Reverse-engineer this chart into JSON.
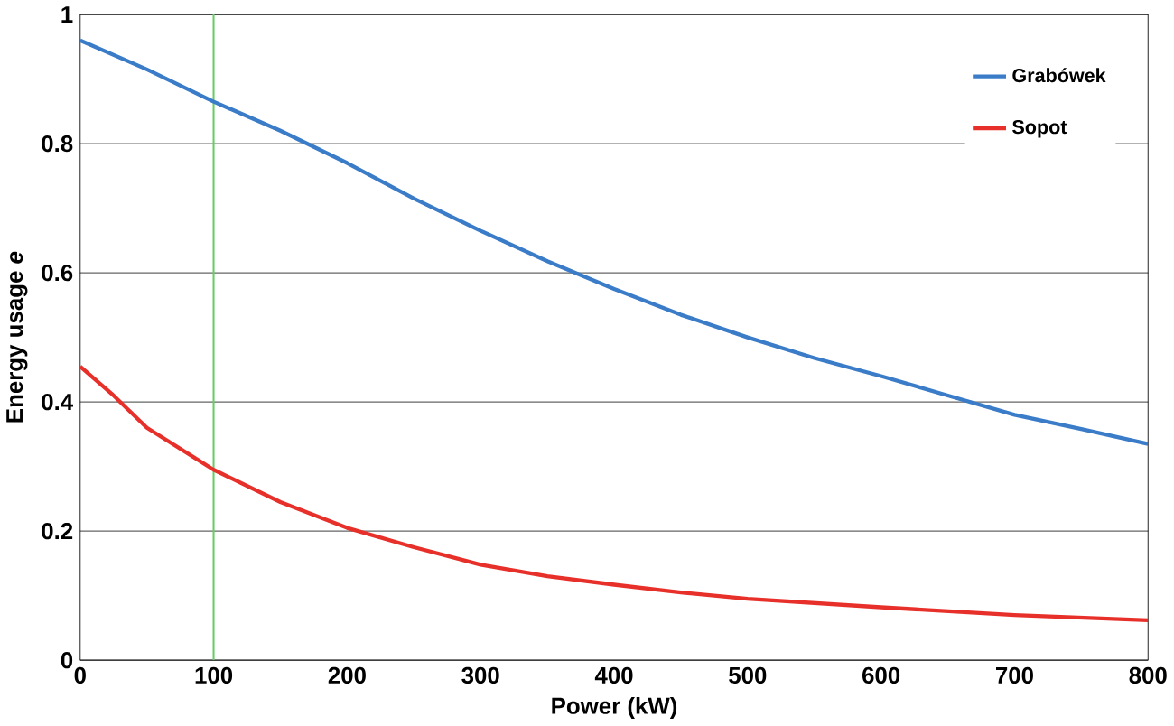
{
  "chart_data": {
    "type": "line",
    "xlabel": "Power (kW)",
    "ylabel": "Energy usage *e*",
    "xlim": [
      0,
      800
    ],
    "ylim": [
      0,
      1
    ],
    "xticks": [
      0,
      100,
      200,
      300,
      400,
      500,
      600,
      700,
      800
    ],
    "yticks": [
      0,
      0.2,
      0.4,
      0.6,
      0.8,
      1
    ],
    "grid": "y",
    "legend": "top right",
    "line_style": "solid",
    "ref_lines": [
      {
        "axis": "x",
        "value": 100,
        "color": "#66cc66"
      }
    ],
    "series": [
      {
        "name": "Grabówek",
        "color": "#3a7cc8",
        "x": [
          0,
          50,
          100,
          150,
          200,
          250,
          300,
          350,
          400,
          450,
          500,
          550,
          600,
          650,
          700,
          750,
          800
        ],
        "values": [
          0.96,
          0.915,
          0.865,
          0.82,
          0.77,
          0.715,
          0.665,
          0.618,
          0.575,
          0.535,
          0.5,
          0.468,
          0.44,
          0.41,
          0.38,
          0.358,
          0.335
        ]
      },
      {
        "name": "Sopot",
        "color": "#e8302a",
        "x": [
          0,
          25,
          50,
          100,
          150,
          200,
          250,
          300,
          350,
          400,
          450,
          500,
          600,
          700,
          800
        ],
        "values": [
          0.455,
          0.41,
          0.36,
          0.295,
          0.245,
          0.205,
          0.175,
          0.148,
          0.13,
          0.117,
          0.105,
          0.095,
          0.082,
          0.07,
          0.062
        ]
      }
    ]
  }
}
